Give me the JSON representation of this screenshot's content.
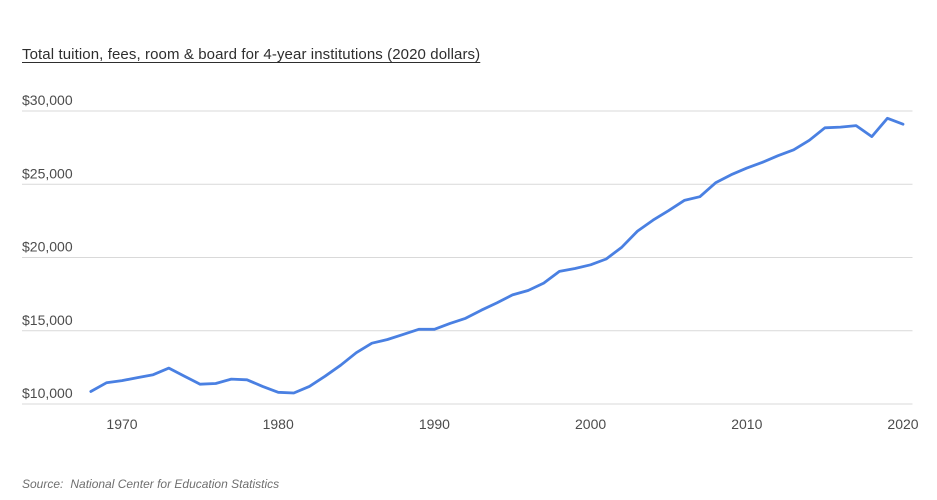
{
  "header": {
    "title": "Total tuition, fees, room & board for 4-year institutions (2020 dollars)"
  },
  "footer": {
    "source_prefix": "Source:",
    "source_text": "National Center for Education Statistics"
  },
  "chart_data": {
    "type": "line",
    "title": "Total tuition, fees, room & board for 4-year institutions (2020 dollars)",
    "xlabel": "",
    "ylabel": "2020 dollars",
    "legend": "none",
    "grid": "horizontal",
    "line_color": "#4a80e2",
    "grid_color": "#d9d9d9",
    "tick_label_color": "#4c4c4c",
    "xlim": [
      1968,
      2020
    ],
    "ylim": [
      10000,
      30000
    ],
    "x_ticks": [
      1970,
      1980,
      1990,
      2000,
      2010,
      2020
    ],
    "y_ticks": [
      {
        "value": 10000,
        "label": "$10,000"
      },
      {
        "value": 15000,
        "label": "$15,000"
      },
      {
        "value": 20000,
        "label": "$20,000"
      },
      {
        "value": 25000,
        "label": "$25,000"
      },
      {
        "value": 30000,
        "label": "$30,000"
      }
    ],
    "series": [
      {
        "name": "Total tuition, fees, room and board, 4-year institutions",
        "x": [
          1968,
          1969,
          1970,
          1971,
          1972,
          1973,
          1974,
          1975,
          1976,
          1977,
          1978,
          1979,
          1980,
          1981,
          1982,
          1983,
          1984,
          1985,
          1986,
          1987,
          1988,
          1989,
          1990,
          1991,
          1992,
          1993,
          1994,
          1995,
          1996,
          1997,
          1998,
          1999,
          2000,
          2001,
          2002,
          2003,
          2004,
          2005,
          2006,
          2007,
          2008,
          2009,
          2010,
          2011,
          2012,
          2013,
          2014,
          2015,
          2016,
          2017,
          2018,
          2019,
          2020
        ],
        "values": [
          10850,
          11450,
          11600,
          11800,
          12000,
          12450,
          11900,
          11350,
          11400,
          11700,
          11650,
          11200,
          10800,
          10750,
          11200,
          11900,
          12650,
          13500,
          14150,
          14400,
          14750,
          15100,
          15100,
          15500,
          15850,
          16400,
          16900,
          17450,
          17750,
          18250,
          19050,
          19250,
          19500,
          19900,
          20700,
          21800,
          22550,
          23200,
          23900,
          24150,
          25100,
          25650,
          26100,
          26500,
          26950,
          27350,
          28000,
          28850,
          28900,
          29000,
          28250,
          29500,
          29100
        ]
      }
    ]
  }
}
